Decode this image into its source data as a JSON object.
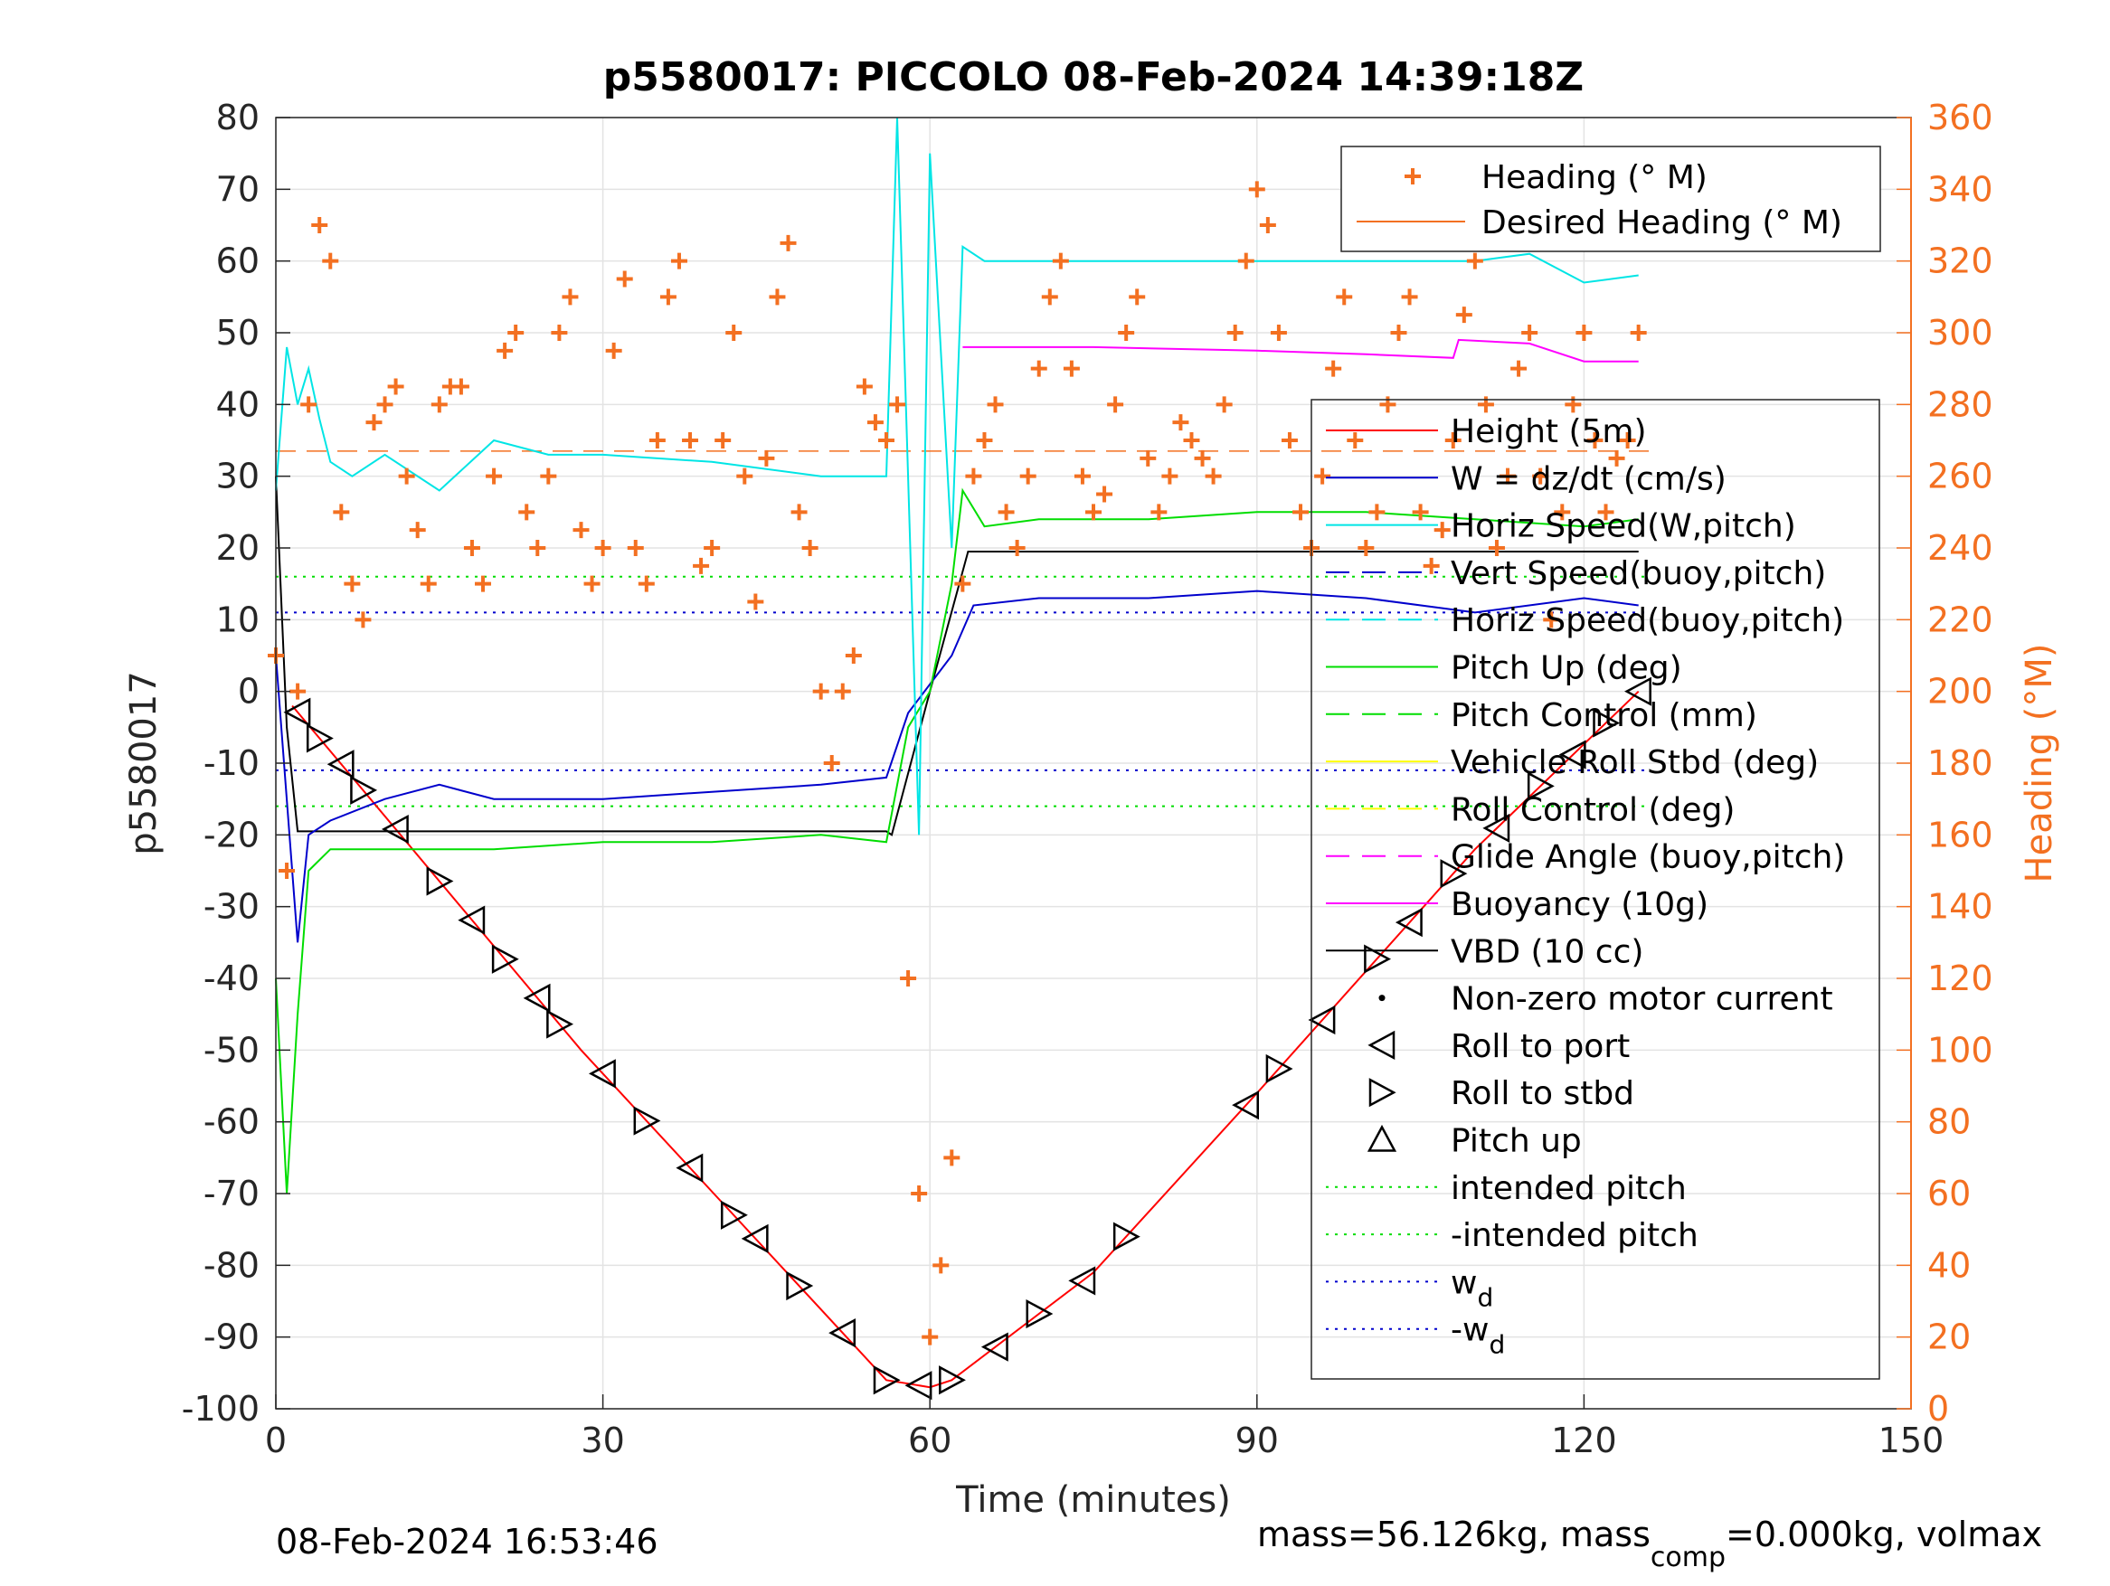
{
  "chart_data": {
    "type": "line",
    "title": "p5580017: PICCOLO 08-Feb-2024 14:39:18Z",
    "xlabel": "Time (minutes)",
    "ylabel_left": "p5580017",
    "ylabel_right": "Heading (°M)",
    "xlim": [
      0,
      150
    ],
    "ylim_left": [
      -100,
      80
    ],
    "ylim_right": [
      0,
      360
    ],
    "x_ticks": [
      "0",
      "30",
      "60",
      "90",
      "120",
      "150"
    ],
    "y_ticks_left": [
      "80",
      "70",
      "60",
      "50",
      "40",
      "30",
      "20",
      "10",
      "0",
      "-10",
      "-20",
      "-30",
      "-40",
      "-50",
      "-60",
      "-70",
      "-80",
      "-90",
      "-100"
    ],
    "y_ticks_right": [
      "360",
      "340",
      "320",
      "300",
      "280",
      "260",
      "240",
      "220",
      "200",
      "180",
      "160",
      "140",
      "120",
      "100",
      "80",
      "60",
      "40",
      "20",
      "0"
    ],
    "grid": true,
    "footer_left": "08-Feb-2024 16:53:46",
    "footer_right_pre": "mass=56.126kg, mass",
    "footer_right_sub": "comp",
    "footer_right_post": "=0.000kg, volmax",
    "colors": {
      "heading": "#F37021",
      "height": "#FF0000",
      "w": "#0000CC",
      "horiz_w": "#00E5E5",
      "pitch": "#00DD00",
      "roll": "#FFFF00",
      "glide": "#FF00FF",
      "vbd": "#000000",
      "right_axis": "#F37021"
    },
    "legend_top": [
      {
        "label": "Heading (° M)",
        "marker": "plus",
        "color": "#F37021"
      },
      {
        "label": "Desired Heading (° M)",
        "marker": "line",
        "color": "#F37021"
      }
    ],
    "legend_main": [
      {
        "label": "Height (5m)",
        "style": "solid",
        "color": "#FF0000"
      },
      {
        "label": "W = dz/dt (cm/s)",
        "style": "solid",
        "color": "#0000CC"
      },
      {
        "label": "Horiz Speed(W,pitch)",
        "style": "solid",
        "color": "#00E5E5"
      },
      {
        "label": "Vert Speed(buoy,pitch)",
        "style": "dashed",
        "color": "#0000CC"
      },
      {
        "label": "Horiz Speed(buoy,pitch)",
        "style": "dashed",
        "color": "#00E5E5"
      },
      {
        "label": "Pitch Up (deg)",
        "style": "solid",
        "color": "#00DD00"
      },
      {
        "label": "Pitch Control (mm)",
        "style": "dashed",
        "color": "#00DD00"
      },
      {
        "label": "Vehicle Roll Stbd (deg)",
        "style": "solid",
        "color": "#FFFF00"
      },
      {
        "label": "Roll Control (deg)",
        "style": "dashed",
        "color": "#FFFF00"
      },
      {
        "label": "Glide Angle (buoy,pitch)",
        "style": "dashed",
        "color": "#FF00FF"
      },
      {
        "label": "Buoyancy (10g)",
        "style": "solid",
        "color": "#FF00FF"
      },
      {
        "label": "VBD (10 cc)",
        "style": "solid",
        "color": "#000000"
      },
      {
        "label": "Non-zero motor current",
        "style": "dot",
        "color": "#000000"
      },
      {
        "label": "Roll to port",
        "style": "tri-left",
        "color": "#000000"
      },
      {
        "label": "Roll to stbd",
        "style": "tri-right",
        "color": "#000000"
      },
      {
        "label": "Pitch up",
        "style": "tri-up",
        "color": "#000000"
      },
      {
        "label": "intended pitch",
        "style": "dotted",
        "color": "#00DD00"
      },
      {
        "label": "-intended pitch",
        "style": "dotted",
        "color": "#00DD00"
      },
      {
        "label": "w",
        "sub": "d",
        "style": "dotted",
        "color": "#0000CC"
      },
      {
        "label": "-w",
        "sub": "d",
        "style": "dotted",
        "color": "#0000CC"
      }
    ],
    "reference_lines": {
      "intended_pitch": 16,
      "minus_intended_pitch": -16,
      "w_d": 11,
      "minus_w_d": -11,
      "desired_heading_deg": 267
    },
    "series": [
      {
        "name": "Height (5m)",
        "x": [
          1.5,
          28,
          56,
          58,
          60,
          62,
          75,
          90,
          100,
          110,
          125
        ],
        "y": [
          -2,
          -50,
          -96,
          -96.5,
          -97,
          -96,
          -81,
          -56,
          -39,
          -22,
          0
        ]
      },
      {
        "name": "VBD (10 cc)",
        "x": [
          0,
          1,
          2,
          5,
          10,
          40,
          56,
          56.5,
          60,
          63.5,
          70,
          90,
          110,
          125
        ],
        "y": [
          30,
          -5,
          -19.5,
          -19.5,
          -19.5,
          -19.5,
          -19.5,
          -20,
          0,
          19.5,
          19.5,
          19.5,
          19.5,
          19.5
        ]
      },
      {
        "name": "W = dz/dt (cm/s)",
        "x": [
          0,
          2,
          3,
          5,
          10,
          15,
          20,
          30,
          40,
          50,
          56,
          58,
          62,
          64,
          70,
          80,
          90,
          100,
          110,
          120,
          125
        ],
        "y": [
          5,
          -35,
          -20,
          -18,
          -15,
          -13,
          -15,
          -15,
          -14,
          -13,
          -12,
          -3,
          5,
          12,
          13,
          13,
          14,
          13,
          11,
          13,
          12
        ]
      },
      {
        "name": "Pitch Up (deg)",
        "x": [
          0,
          1,
          2,
          3,
          5,
          10,
          20,
          30,
          40,
          50,
          56,
          58,
          60,
          62,
          63,
          65,
          70,
          80,
          90,
          100,
          110,
          120,
          125
        ],
        "y": [
          -40,
          -70,
          -45,
          -25,
          -22,
          -22,
          -22,
          -21,
          -21,
          -20,
          -21,
          -5,
          0,
          15,
          28,
          23,
          24,
          24,
          25,
          25,
          24,
          23,
          24
        ]
      },
      {
        "name": "Horiz Speed(W,pitch)",
        "x": [
          0,
          1,
          2,
          3,
          4,
          5,
          7,
          10,
          15,
          20,
          25,
          30,
          40,
          50,
          56,
          57,
          59,
          60,
          62,
          63,
          65,
          70,
          80,
          90,
          100,
          110,
          115,
          120,
          125
        ],
        "y": [
          28,
          48,
          40,
          45,
          38,
          32,
          30,
          33,
          28,
          35,
          33,
          33,
          32,
          30,
          30,
          80,
          -20,
          75,
          20,
          62,
          60,
          60,
          60,
          60,
          60,
          60,
          61,
          57,
          58
        ]
      },
      {
        "name": "Buoyancy (10g)",
        "x": [
          63,
          75,
          90,
          100,
          108,
          108.5,
          115,
          120,
          125
        ],
        "y": [
          48,
          48,
          47.5,
          47,
          46.5,
          49,
          48.5,
          46,
          46
        ]
      },
      {
        "name": "Heading (° M)",
        "axis": "right",
        "x": [
          0,
          1,
          2,
          3,
          4,
          5,
          6,
          7,
          8,
          9,
          10,
          11,
          12,
          13,
          14,
          15,
          16,
          17,
          18,
          19,
          20,
          21,
          22,
          23,
          24,
          25,
          26,
          27,
          28,
          29,
          30,
          31,
          32,
          33,
          34,
          35,
          36,
          37,
          38,
          39,
          40,
          41,
          42,
          43,
          44,
          45,
          46,
          47,
          48,
          49,
          50,
          51,
          52,
          53,
          54,
          55,
          56,
          57,
          58,
          59,
          60,
          61,
          62,
          63,
          64,
          65,
          66,
          67,
          68,
          69,
          70,
          71,
          72,
          73,
          74,
          75,
          76,
          77,
          78,
          79,
          80,
          81,
          82,
          83,
          84,
          85,
          86,
          87,
          88,
          89,
          90,
          91,
          92,
          93,
          94,
          95,
          96,
          97,
          98,
          99,
          100,
          101,
          102,
          103,
          104,
          105,
          106,
          107,
          108,
          109,
          110,
          111,
          112,
          113,
          114,
          115,
          116,
          117,
          118,
          119,
          120,
          121,
          122,
          123,
          124,
          125
        ],
        "y": [
          210,
          150,
          200,
          280,
          330,
          320,
          250,
          230,
          220,
          275,
          280,
          285,
          260,
          245,
          230,
          280,
          285,
          285,
          240,
          230,
          260,
          295,
          300,
          250,
          240,
          260,
          300,
          310,
          245,
          230,
          240,
          295,
          315,
          240,
          230,
          270,
          310,
          320,
          270,
          235,
          240,
          270,
          300,
          260,
          225,
          265,
          310,
          325,
          250,
          240,
          200,
          180,
          200,
          210,
          285,
          275,
          270,
          280,
          120,
          60,
          20,
          40,
          70,
          230,
          260,
          270,
          280,
          250,
          240,
          260,
          290,
          310,
          320,
          290,
          260,
          250,
          255,
          280,
          300,
          310,
          265,
          250,
          260,
          275,
          270,
          265,
          260,
          280,
          300,
          320,
          340,
          330,
          300,
          270,
          250,
          240,
          260,
          290,
          310,
          270,
          240,
          250,
          280,
          300,
          310,
          250,
          235,
          245,
          270,
          305,
          320,
          280,
          240,
          260,
          290,
          300,
          260,
          220,
          250,
          280,
          300,
          270,
          250,
          265,
          270,
          300
        ]
      }
    ]
  }
}
